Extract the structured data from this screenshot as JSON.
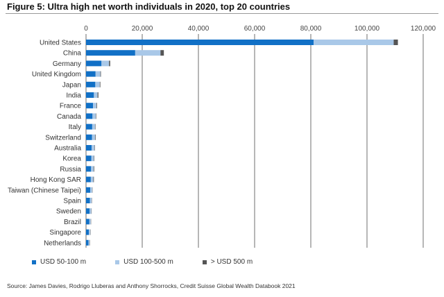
{
  "title": "Figure 5: Ultra high net worth individuals in 2020, top 20 countries",
  "source": "Source: James Davies, Rodrigo Lluberas and Anthony Shorrocks, Credit Suisse Global Wealth Databook 2021",
  "colors": {
    "usd_50_100": "#1170c6",
    "usd_100_500": "#a9c8e8",
    "usd_500_plus": "#555555",
    "grid": "#6e6e6e"
  },
  "chart_data": {
    "type": "bar",
    "orientation": "horizontal",
    "stacked": true,
    "title": "Figure 5: Ultra high net worth individuals in 2020, top 20 countries",
    "xlim": [
      0,
      120000
    ],
    "xticks": [
      0,
      20000,
      40000,
      60000,
      80000,
      100000,
      120000
    ],
    "xtick_labels": [
      "0",
      "20,000",
      "40,000",
      "60,000",
      "80,000",
      "100,000",
      "120,000"
    ],
    "axis_position": "top",
    "grid": true,
    "legend_position": "bottom",
    "categories": [
      "United States",
      "China",
      "Germany",
      "United Kingdom",
      "Japan",
      "India",
      "France",
      "Canada",
      "Italy",
      "Switzerland",
      "Australia",
      "Korea",
      "Russia",
      "Hong Kong SAR",
      "Taiwan (Chinese Taipei)",
      "Spain",
      "Sweden",
      "Brazil",
      "Singapore",
      "Netherlands"
    ],
    "series": [
      {
        "name": "USD 50-100 m",
        "color": "#1170c6",
        "values": [
          81000,
          17500,
          5500,
          3400,
          3300,
          2800,
          2500,
          2300,
          2200,
          2100,
          2000,
          1900,
          1800,
          1700,
          1500,
          1400,
          1300,
          1200,
          1000,
          900
        ]
      },
      {
        "name": "USD 100-500 m",
        "color": "#a9c8e8",
        "values": [
          28500,
          9000,
          2700,
          1700,
          1600,
          1300,
          1200,
          1200,
          1000,
          1100,
          1000,
          900,
          900,
          900,
          700,
          600,
          600,
          500,
          500,
          400
        ]
      },
      {
        "name": "> USD 500 m",
        "color": "#555555",
        "values": [
          1500,
          1200,
          400,
          200,
          200,
          300,
          200,
          150,
          150,
          200,
          150,
          150,
          200,
          200,
          100,
          100,
          100,
          100,
          100,
          100
        ]
      }
    ]
  }
}
